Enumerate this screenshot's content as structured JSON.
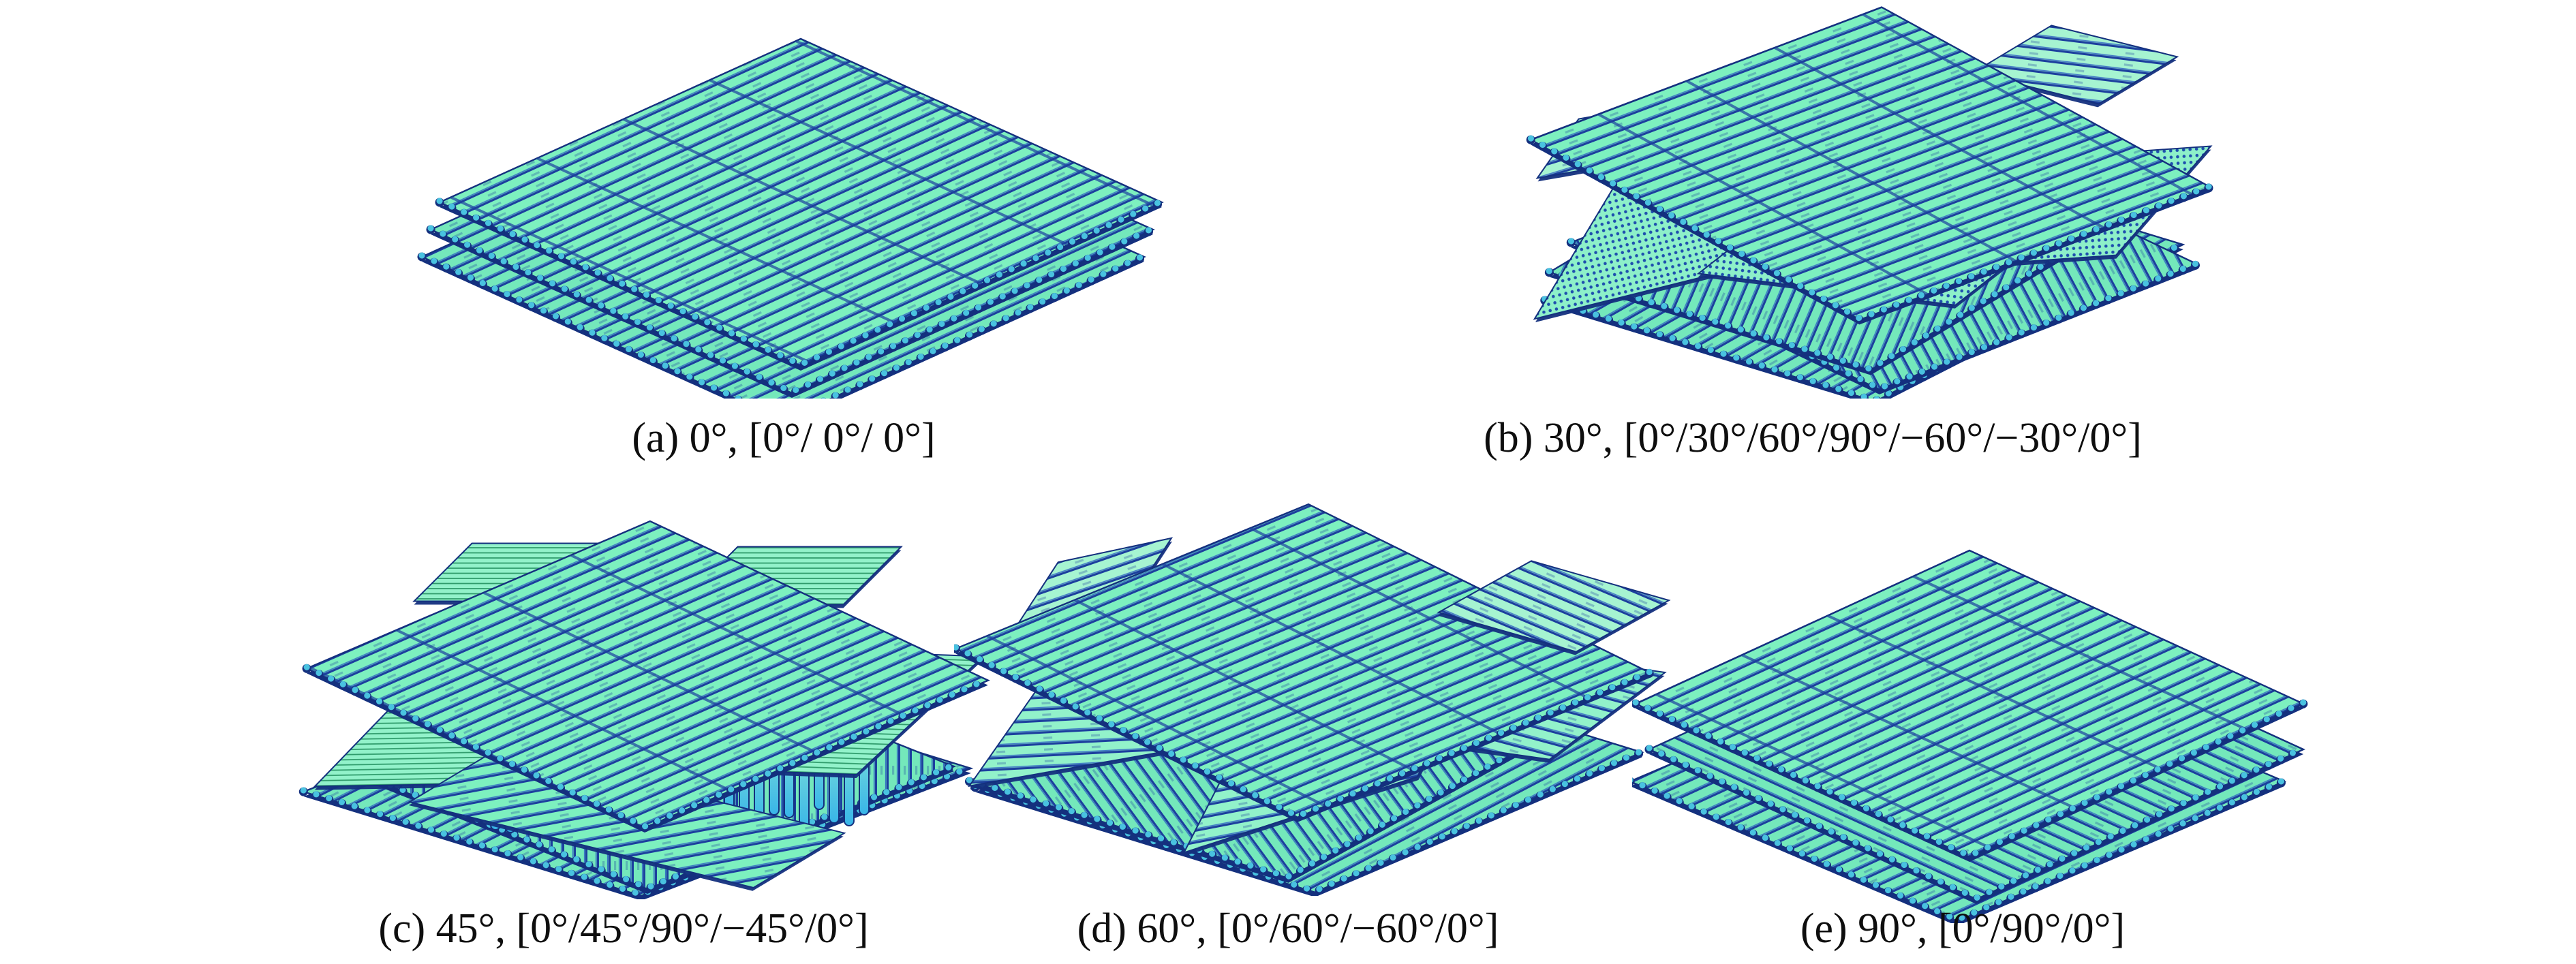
{
  "figure": {
    "description": "Simulated 3D-printed scaffold lattices built with different raster angles",
    "panels": [
      {
        "key": "a",
        "letter": "(a)",
        "raster_angle": "0°",
        "stacking_sequence": "[0°/ 0°/ 0°]",
        "caption": "(a) 0°, [0°/ 0°/ 0°]",
        "layer_angles": [
          0,
          0,
          0
        ]
      },
      {
        "key": "b",
        "letter": "(b)",
        "raster_angle": "30°",
        "stacking_sequence": "[0°/30°/60°/90°/−60°/−30°/0°]",
        "caption": "(b) 30°, [0°/30°/60°/90°/−60°/−30°/0°]",
        "layer_angles": [
          0,
          30,
          60,
          90,
          -60,
          -30,
          0
        ]
      },
      {
        "key": "c",
        "letter": "(c)",
        "raster_angle": "45°",
        "stacking_sequence": "[0°/45°/90°/−45°/0°]",
        "caption": "(c) 45°, [0°/45°/90°/−45°/0°]",
        "layer_angles": [
          0,
          45,
          90,
          -45,
          0
        ]
      },
      {
        "key": "d",
        "letter": "(d)",
        "raster_angle": "60°",
        "stacking_sequence": "[0°/60°/−60°/0°]",
        "caption": "(d) 60°, [0°/60°/−60°/0°]",
        "layer_angles": [
          0,
          60,
          -60,
          0
        ]
      },
      {
        "key": "e",
        "letter": "(e)",
        "raster_angle": "90°",
        "stacking_sequence": "[0°/90°/0°]",
        "caption": "(e) 90°, [0°/90°/0°]",
        "layer_angles": [
          0,
          90,
          0
        ]
      }
    ],
    "colors": {
      "background": "#ffffff",
      "rod_fill": "#7df0bf",
      "rod_fill_low": "#74e8bb",
      "rod_fill_pale": "#a6f4d1",
      "dots_bg": "#8df0c9",
      "hlines_bg": "#92f2ca",
      "rod_shadow": "#1c3f9e",
      "rod_mid_blue": "#2f62c4",
      "outline": "#14307e",
      "dot": "#1e4fae",
      "hline_green": "#2e9a6a",
      "capsule_top": "#8fe9d6",
      "capsule_bottom": "#38b5e8",
      "edge_dot": "#49c2e0",
      "text": "#0e0e0e"
    }
  }
}
